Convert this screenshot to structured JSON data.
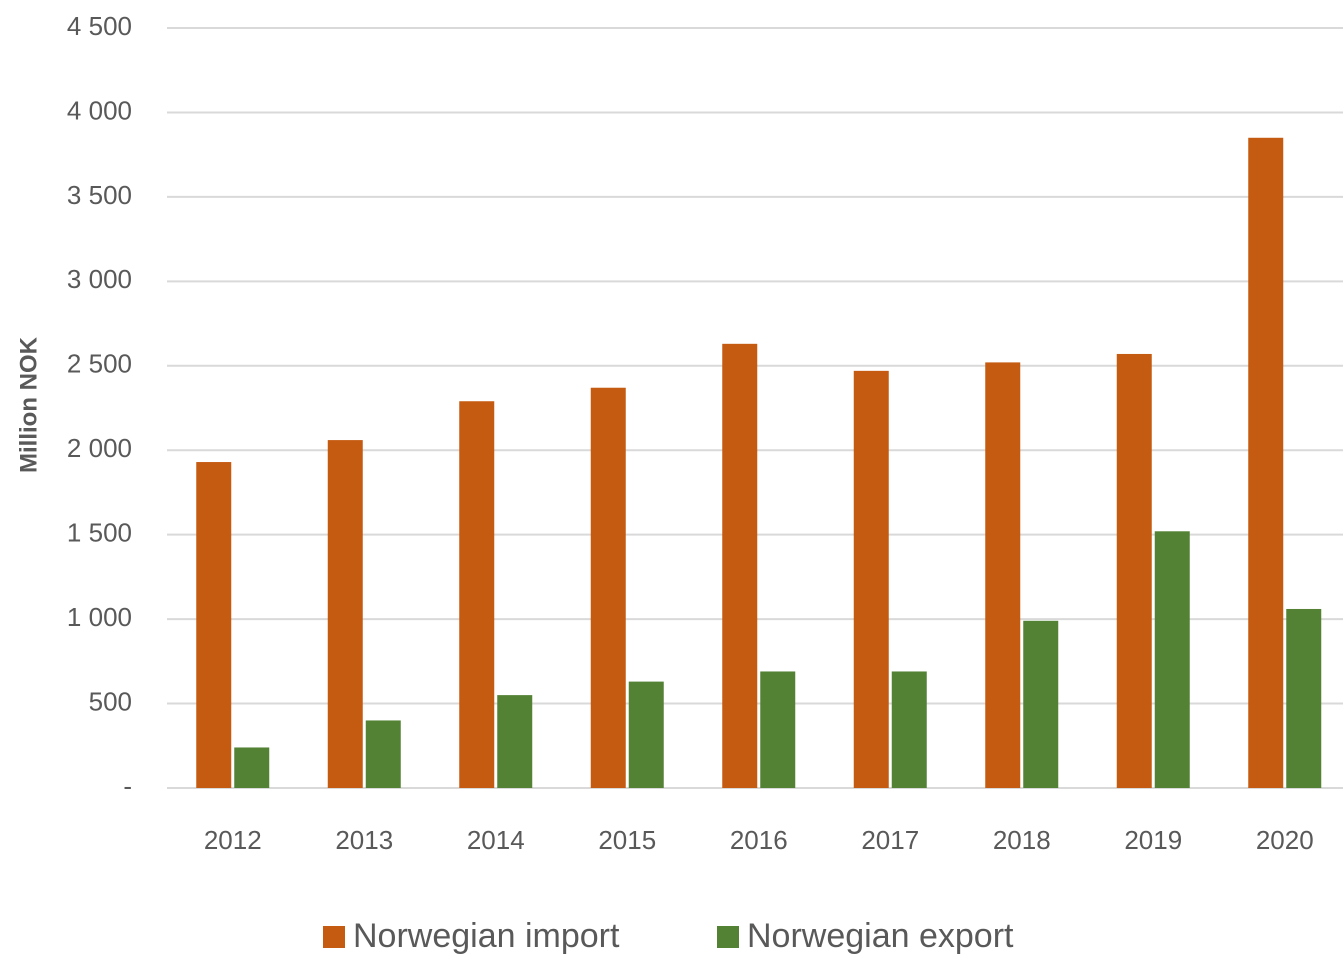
{
  "chart_data": {
    "type": "bar",
    "y_label": "Million NOK",
    "categories": [
      "2012",
      "2013",
      "2014",
      "2015",
      "2016",
      "2017",
      "2018",
      "2019",
      "2020"
    ],
    "series": [
      {
        "name": "Norwegian import",
        "color": "#c55a11",
        "values": [
          1930,
          2060,
          2290,
          2370,
          2630,
          2470,
          2520,
          2570,
          3850
        ]
      },
      {
        "name": "Norwegian export",
        "color": "#548235",
        "values": [
          240,
          400,
          550,
          630,
          690,
          690,
          990,
          1520,
          1060
        ]
      }
    ],
    "ylim": [
      0,
      4500
    ],
    "yticks": [
      {
        "value": 0,
        "label": "-"
      },
      500,
      {
        "value": 1000,
        "label": "1 000"
      },
      {
        "value": 1500,
        "label": "1 500"
      },
      {
        "value": 2000,
        "label": "2 000"
      },
      {
        "value": 2500,
        "label": "2 500"
      },
      {
        "value": 3000,
        "label": "3 000"
      },
      {
        "value": 3500,
        "label": "3 500"
      },
      {
        "value": 4000,
        "label": "4 000"
      },
      {
        "value": 4500,
        "label": "4 500"
      }
    ],
    "grid": true,
    "legend": "bottom"
  }
}
